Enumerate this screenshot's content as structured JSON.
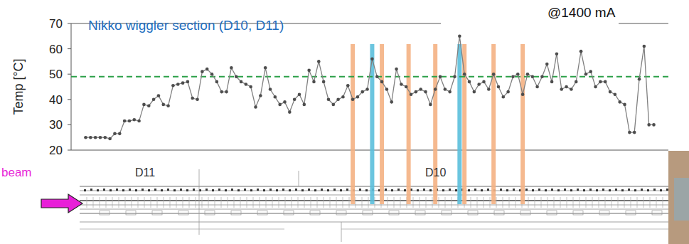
{
  "chart_data": {
    "type": "line",
    "title": "Nikko wiggler section (D10, D11)",
    "y_label": "Temp [°C]",
    "annotations": [
      {
        "text": "@1400 mA"
      },
      {
        "text": "beam"
      },
      {
        "text": "D11"
      },
      {
        "text": "D10"
      }
    ],
    "x": [
      0,
      1,
      2,
      3,
      4,
      5,
      6,
      7,
      8,
      9,
      10,
      11,
      12,
      13,
      14,
      15,
      16,
      17,
      18,
      19,
      20,
      21,
      22,
      23,
      24,
      25,
      26,
      27,
      28,
      29,
      30,
      31,
      32,
      33,
      34,
      35,
      36,
      37,
      38,
      39,
      40,
      41,
      42,
      43,
      44,
      45,
      46,
      47,
      48,
      49,
      50,
      51,
      52,
      53,
      54,
      55,
      56,
      57,
      58,
      59,
      60,
      61,
      62,
      63,
      64,
      65,
      66,
      67,
      68,
      69,
      70,
      71,
      72,
      73,
      74,
      75,
      76,
      77,
      78,
      79,
      80,
      81,
      82,
      83,
      84,
      85,
      86,
      87,
      88,
      89,
      90,
      91,
      92,
      93,
      94,
      95,
      96,
      97,
      98,
      99,
      100,
      101,
      102,
      103,
      104,
      105,
      106,
      107,
      108,
      109,
      110,
      111,
      112,
      113,
      114,
      115,
      116,
      117
    ],
    "values": [
      25,
      25,
      25,
      25,
      25,
      24.5,
      26.5,
      26.5,
      31.5,
      31.5,
      32,
      31.5,
      38,
      37.5,
      40,
      41.5,
      38,
      37.5,
      45.5,
      46,
      46.5,
      47,
      40.5,
      40,
      51,
      52,
      50,
      47,
      43,
      43,
      52.5,
      49,
      47,
      46,
      45,
      37,
      41.5,
      52.5,
      44,
      41,
      38,
      39,
      35,
      40,
      42,
      38,
      51.5,
      47,
      55,
      47,
      40,
      38,
      40,
      41,
      45.5,
      40,
      41,
      43,
      44,
      56,
      49,
      47,
      44,
      39,
      52,
      46,
      45,
      42,
      43,
      44,
      43,
      38,
      44,
      49,
      44,
      43,
      49,
      65,
      50,
      47,
      43,
      46,
      47,
      44,
      50,
      45,
      41,
      43,
      49,
      50,
      42,
      50,
      49,
      45,
      49,
      54,
      47,
      58,
      44,
      45,
      44,
      47,
      59,
      50,
      51,
      45,
      47,
      47,
      43,
      42,
      39,
      38,
      27,
      27,
      48,
      61,
      30,
      30
    ],
    "color": "#808080",
    "marker": "circle",
    "xlim": [
      -3,
      120
    ],
    "ylim": [
      20,
      70
    ],
    "yticks": [
      20,
      30,
      40,
      50,
      60,
      70
    ],
    "tick_labels": "y",
    "reference_line": {
      "value": 49,
      "color": "#2ca048",
      "line_style": "dashed"
    },
    "bands": [
      {
        "x": 55,
        "color": "#f4b183"
      },
      {
        "x": 59,
        "color": "#5bbfdc"
      },
      {
        "x": 61,
        "color": "#f4b183"
      },
      {
        "x": 66.5,
        "color": "#f4b183"
      },
      {
        "x": 72,
        "color": "#f4b183"
      },
      {
        "x": 77,
        "color": "#5bbfdc"
      },
      {
        "x": 78,
        "color": "#f4b183"
      },
      {
        "x": 84,
        "color": "#f4b183"
      },
      {
        "x": 90,
        "color": "#f4b183"
      }
    ]
  }
}
